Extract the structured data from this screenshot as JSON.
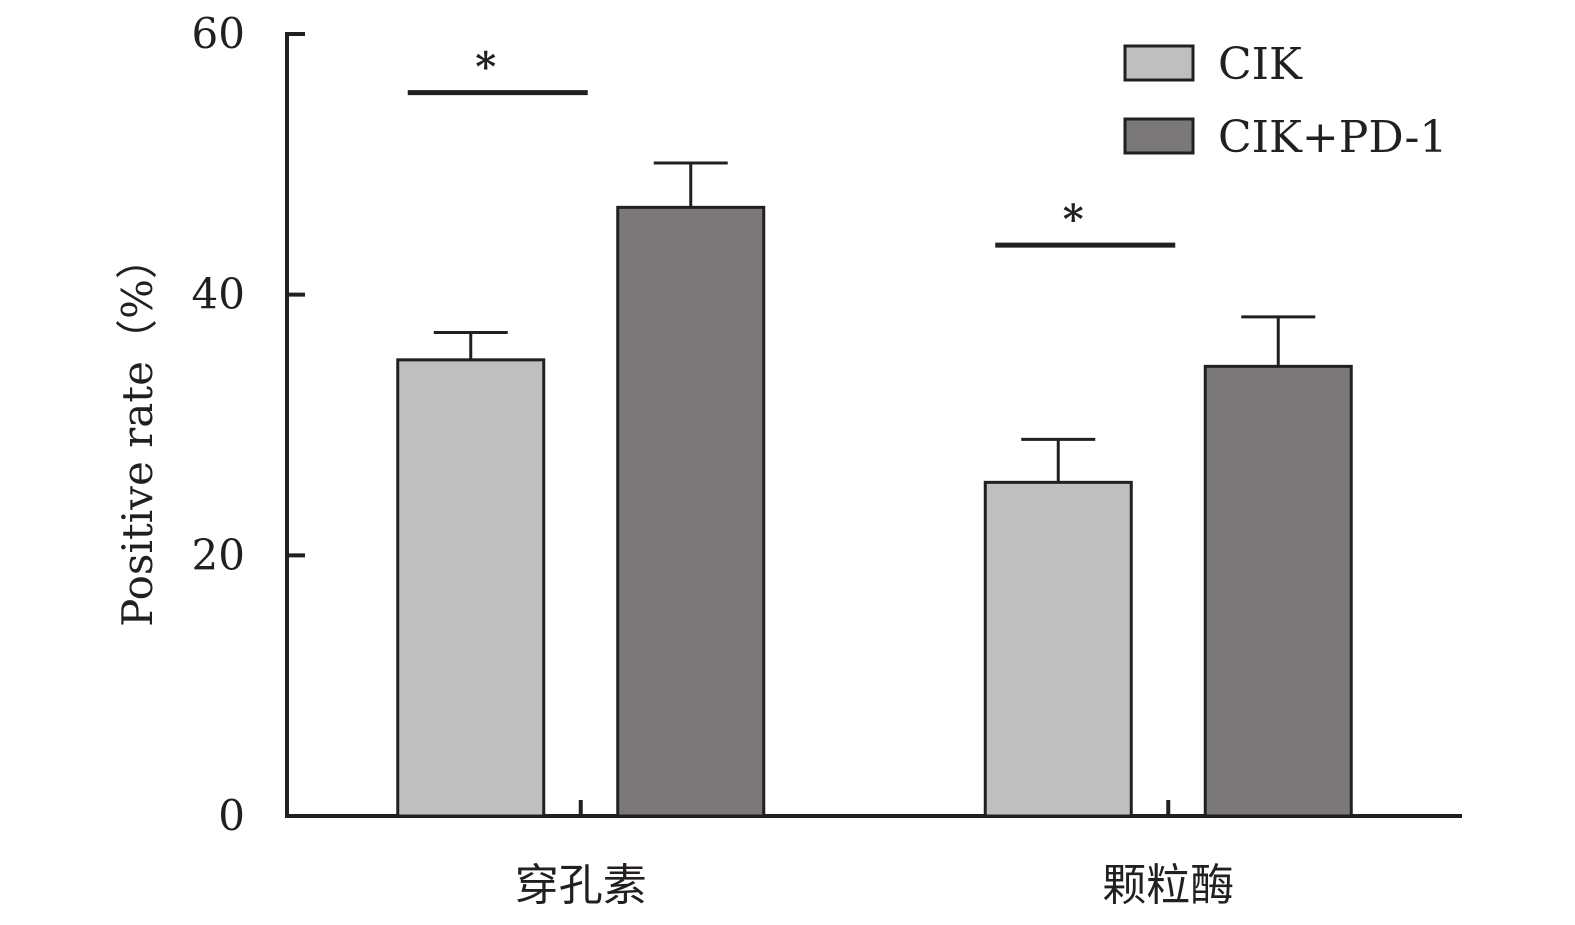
{
  "chart_data": {
    "type": "bar",
    "title": "",
    "xlabel": "",
    "ylabel": "Positive rate（%）",
    "ylim": [
      0,
      60
    ],
    "yticks": [
      0,
      20,
      40,
      60
    ],
    "categories": [
      "穿孔素",
      "颗粒酶"
    ],
    "series": [
      {
        "name": "CIK",
        "values": [
          35,
          25.6
        ],
        "errors": [
          2.1,
          3.3
        ],
        "color": "#bfbfbf"
      },
      {
        "name": "CIK+PD-1",
        "values": [
          46.7,
          34.5
        ],
        "errors": [
          3.4,
          3.8
        ],
        "color": "#7a7879"
      }
    ],
    "significance": [
      {
        "category": "穿孔素",
        "label": "*",
        "y": 55.5
      },
      {
        "category": "颗粒酶",
        "label": "*",
        "y": 43.8
      }
    ],
    "legend_position": "top-right",
    "grid": false
  }
}
